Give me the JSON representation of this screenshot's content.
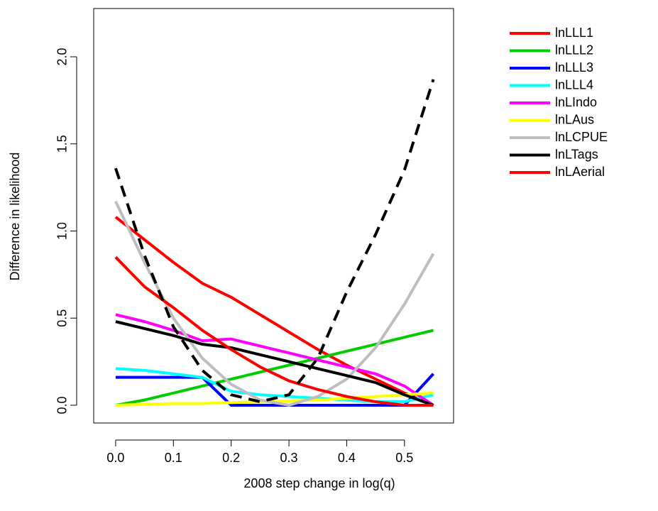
{
  "chart_data": {
    "type": "line",
    "x_label": "2008 step change in log(q)",
    "y_label": "Difference in likelihood",
    "x": [
      0,
      0.05,
      0.1,
      0.15,
      0.2,
      0.25,
      0.3,
      0.35,
      0.4,
      0.45,
      0.5,
      0.55
    ],
    "xlim": [
      -0.038,
      0.585
    ],
    "ylim": [
      -0.102,
      2.277
    ],
    "xticks": [
      {
        "value": 0,
        "label": "0.0"
      },
      0.1,
      0.2,
      0.3,
      0.4,
      0.5
    ],
    "yticks": [
      {
        "value": 0,
        "label": "0.0"
      },
      0.5,
      {
        "value": 1,
        "label": "1.0"
      },
      1.5,
      {
        "value": 2,
        "label": "2.0"
      }
    ],
    "legend": "top-right",
    "series": [
      {
        "name": "lnLLL1",
        "color": "#ff0000",
        "values": [
          1.08,
          0.95,
          0.82,
          0.7,
          0.62,
          0.52,
          0.42,
          0.32,
          0.23,
          0.15,
          0.07,
          0.0
        ]
      },
      {
        "name": "lnLLL2",
        "color": "#00cd00",
        "values": [
          0.0,
          0.03,
          0.07,
          0.11,
          0.15,
          0.19,
          0.23,
          0.27,
          0.31,
          0.35,
          0.39,
          0.43
        ]
      },
      {
        "name": "lnLLL3",
        "color": "#0000ff",
        "values": [
          0.16,
          0.16,
          0.16,
          0.16,
          0.0,
          0.0,
          0.0,
          0.0,
          0.0,
          0.0,
          0.0,
          0.18
        ]
      },
      {
        "name": "lnLLL4",
        "color": "#00ffff",
        "values": [
          0.21,
          0.2,
          0.18,
          0.16,
          0.08,
          0.06,
          0.05,
          0.04,
          0.03,
          0.02,
          0.02,
          0.06
        ]
      },
      {
        "name": "lnLIndo",
        "color": "#ff00ff",
        "values": [
          0.52,
          0.48,
          0.43,
          0.37,
          0.38,
          0.34,
          0.3,
          0.26,
          0.22,
          0.18,
          0.11,
          0.0
        ]
      },
      {
        "name": "lnLAus",
        "color": "#ffff00",
        "values": [
          0.0,
          0.005,
          0.01,
          0.01,
          0.015,
          0.02,
          0.025,
          0.03,
          0.04,
          0.05,
          0.06,
          0.07
        ]
      },
      {
        "name": "lnLCPUE",
        "color": "#bebebe",
        "values": [
          1.17,
          0.82,
          0.5,
          0.27,
          0.12,
          0.03,
          0.0,
          0.05,
          0.15,
          0.33,
          0.58,
          0.87
        ]
      },
      {
        "name": "lnLTags",
        "color": "#000000",
        "values": [
          0.48,
          0.44,
          0.4,
          0.35,
          0.33,
          0.29,
          0.25,
          0.21,
          0.17,
          0.13,
          0.06,
          0.0
        ]
      },
      {
        "name": "lnLAerial",
        "color": "#ff0000",
        "values": [
          0.85,
          0.68,
          0.56,
          0.43,
          0.32,
          0.22,
          0.14,
          0.09,
          0.05,
          0.02,
          0.0,
          0.0
        ]
      },
      {
        "color": "#000000",
        "dashed": true,
        "values": [
          1.36,
          0.86,
          0.45,
          0.2,
          0.06,
          0.02,
          0.06,
          0.27,
          0.65,
          0.98,
          1.35,
          1.87
        ]
      }
    ]
  }
}
